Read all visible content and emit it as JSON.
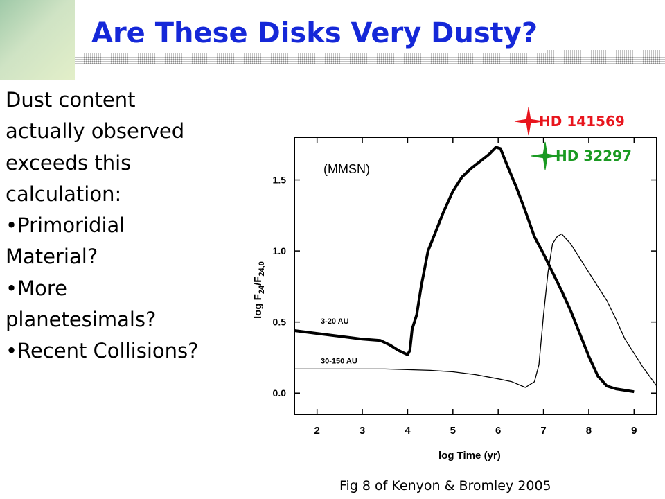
{
  "slide": {
    "title": "Are These Disks Very Dusty?",
    "bullets": [
      "Dust content",
      "actually observed",
      "exceeds this",
      "calculation:",
      "•Primoridial",
      "Material?",
      "•More",
      "planetesimals?",
      "•Recent Collisions?"
    ],
    "caption": "Fig 8 of Kenyon & Bromley 2005",
    "colors": {
      "title": "#1528d8",
      "hd141569": "#e8151d",
      "hd32297": "#1a9a22"
    }
  },
  "chart_data": {
    "type": "line",
    "xlabel": "log Time (yr)",
    "ylabel_main": "log F",
    "ylabel_sub1": "24",
    "ylabel_slash": "/F",
    "ylabel_sub2": "24,0",
    "xlim": [
      1.5,
      9.5
    ],
    "ylim": [
      -0.15,
      1.8
    ],
    "xticks": [
      2,
      3,
      4,
      5,
      6,
      7,
      8,
      9
    ],
    "yticks": [
      0.0,
      0.5,
      1.0,
      1.5
    ],
    "ytick_labels": [
      "0.0",
      "0.5",
      "1.0",
      "1.5"
    ],
    "annotation": "(MMSN)",
    "series": [
      {
        "name": "3-20 AU",
        "style": "thick",
        "x": [
          1.5,
          2.0,
          2.5,
          3.0,
          3.4,
          3.6,
          3.8,
          4.0,
          4.05,
          4.1,
          4.2,
          4.3,
          4.45,
          4.6,
          4.8,
          5.0,
          5.2,
          5.4,
          5.6,
          5.8,
          5.95,
          6.05,
          6.2,
          6.4,
          6.6,
          6.8,
          7.0,
          7.2,
          7.4,
          7.6,
          7.8,
          8.0,
          8.2,
          8.4,
          8.6,
          9.0
        ],
        "y": [
          0.44,
          0.42,
          0.4,
          0.38,
          0.37,
          0.34,
          0.3,
          0.27,
          0.3,
          0.45,
          0.55,
          0.75,
          1.0,
          1.12,
          1.28,
          1.42,
          1.52,
          1.58,
          1.63,
          1.68,
          1.73,
          1.72,
          1.6,
          1.45,
          1.28,
          1.1,
          0.98,
          0.85,
          0.72,
          0.58,
          0.42,
          0.26,
          0.12,
          0.05,
          0.03,
          0.01
        ]
      },
      {
        "name": "30-150 AU",
        "style": "thin",
        "x": [
          1.5,
          2.5,
          3.5,
          4.5,
          5.0,
          5.5,
          6.0,
          6.3,
          6.6,
          6.8,
          6.9,
          7.0,
          7.1,
          7.2,
          7.3,
          7.4,
          7.6,
          7.8,
          8.0,
          8.2,
          8.4,
          8.6,
          8.8,
          9.0,
          9.2,
          9.5
        ],
        "y": [
          0.17,
          0.17,
          0.17,
          0.16,
          0.15,
          0.13,
          0.1,
          0.08,
          0.04,
          0.08,
          0.2,
          0.55,
          0.85,
          1.05,
          1.1,
          1.12,
          1.05,
          0.95,
          0.85,
          0.75,
          0.65,
          0.52,
          0.38,
          0.28,
          0.18,
          0.05
        ]
      }
    ],
    "markers": [
      {
        "label": "HD 141569",
        "color": "#e8151d"
      },
      {
        "label": "HD 32297",
        "color": "#1a9a22"
      }
    ]
  }
}
